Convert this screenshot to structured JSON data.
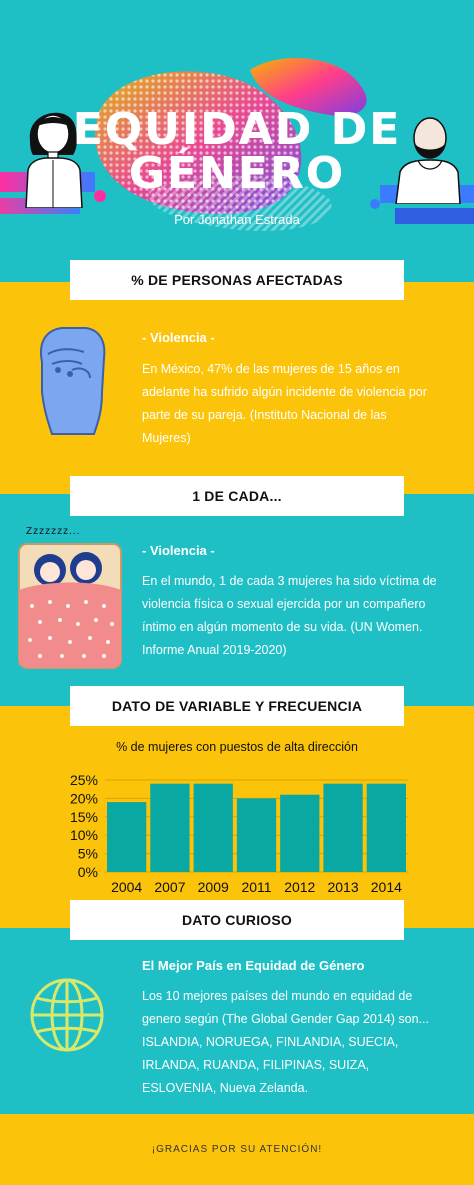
{
  "header": {
    "title_line1": "EQUIDAD DE",
    "title_line2": "GÉNERO",
    "author": "Por Jonathan Estrada"
  },
  "section1": {
    "heading": "% DE PERSONAS AFECTADAS",
    "subtitle": "- Violencia -",
    "text": "En México, 47% de las mujeres de 15 años en adelante ha sufrido algún incidente de violencia por parte de su pareja. (Instituto Nacional de las Mujeres)",
    "icon": "raised-fist-icon"
  },
  "section2": {
    "heading": "1 DE CADA...",
    "subtitle": "- Violencia -",
    "text": "En el mundo, 1 de cada 3 mujeres ha sido víctima de violencia física o sexual ejercida por un compañero íntimo en algún momento de su vida. (UN Women. Informe Anual 2019-2020)",
    "sleep_text": "Zzzzzzz...",
    "icon": "couple-in-bed-icon"
  },
  "section3": {
    "heading": "DATO DE VARIABLE Y FRECUENCIA"
  },
  "chart_data": {
    "type": "bar",
    "title": "% de mujeres con puestos de alta dirección",
    "categories": [
      "2004",
      "2007",
      "2009",
      "2011",
      "2012",
      "2013",
      "2014"
    ],
    "values": [
      19,
      24,
      24,
      20,
      21,
      24,
      24
    ],
    "yticks": [
      "0%",
      "5%",
      "10%",
      "15%",
      "20%",
      "25%"
    ],
    "ylim": [
      0,
      25
    ],
    "grid": true,
    "bar_color": "#0aa8a3"
  },
  "section4": {
    "heading": "DATO CURIOSO",
    "subtitle": "El Mejor País en Equidad de Género",
    "text": "Los 10 mejores países del mundo en equidad de genero según (The Global Gender Gap 2014) son... ISLANDIA, NORUEGA, FINLANDIA, SUECIA, IRLANDA, RUANDA, FILIPINAS, SUIZA, ESLOVENIA, Nueva Zelanda.",
    "icon": "globe-icon"
  },
  "footer": {
    "text": "¡GRACIAS POR SU ATENCIÓN!"
  },
  "colors": {
    "teal": "#1fbfc6",
    "yellow": "#fbc40a",
    "white": "#ffffff"
  }
}
